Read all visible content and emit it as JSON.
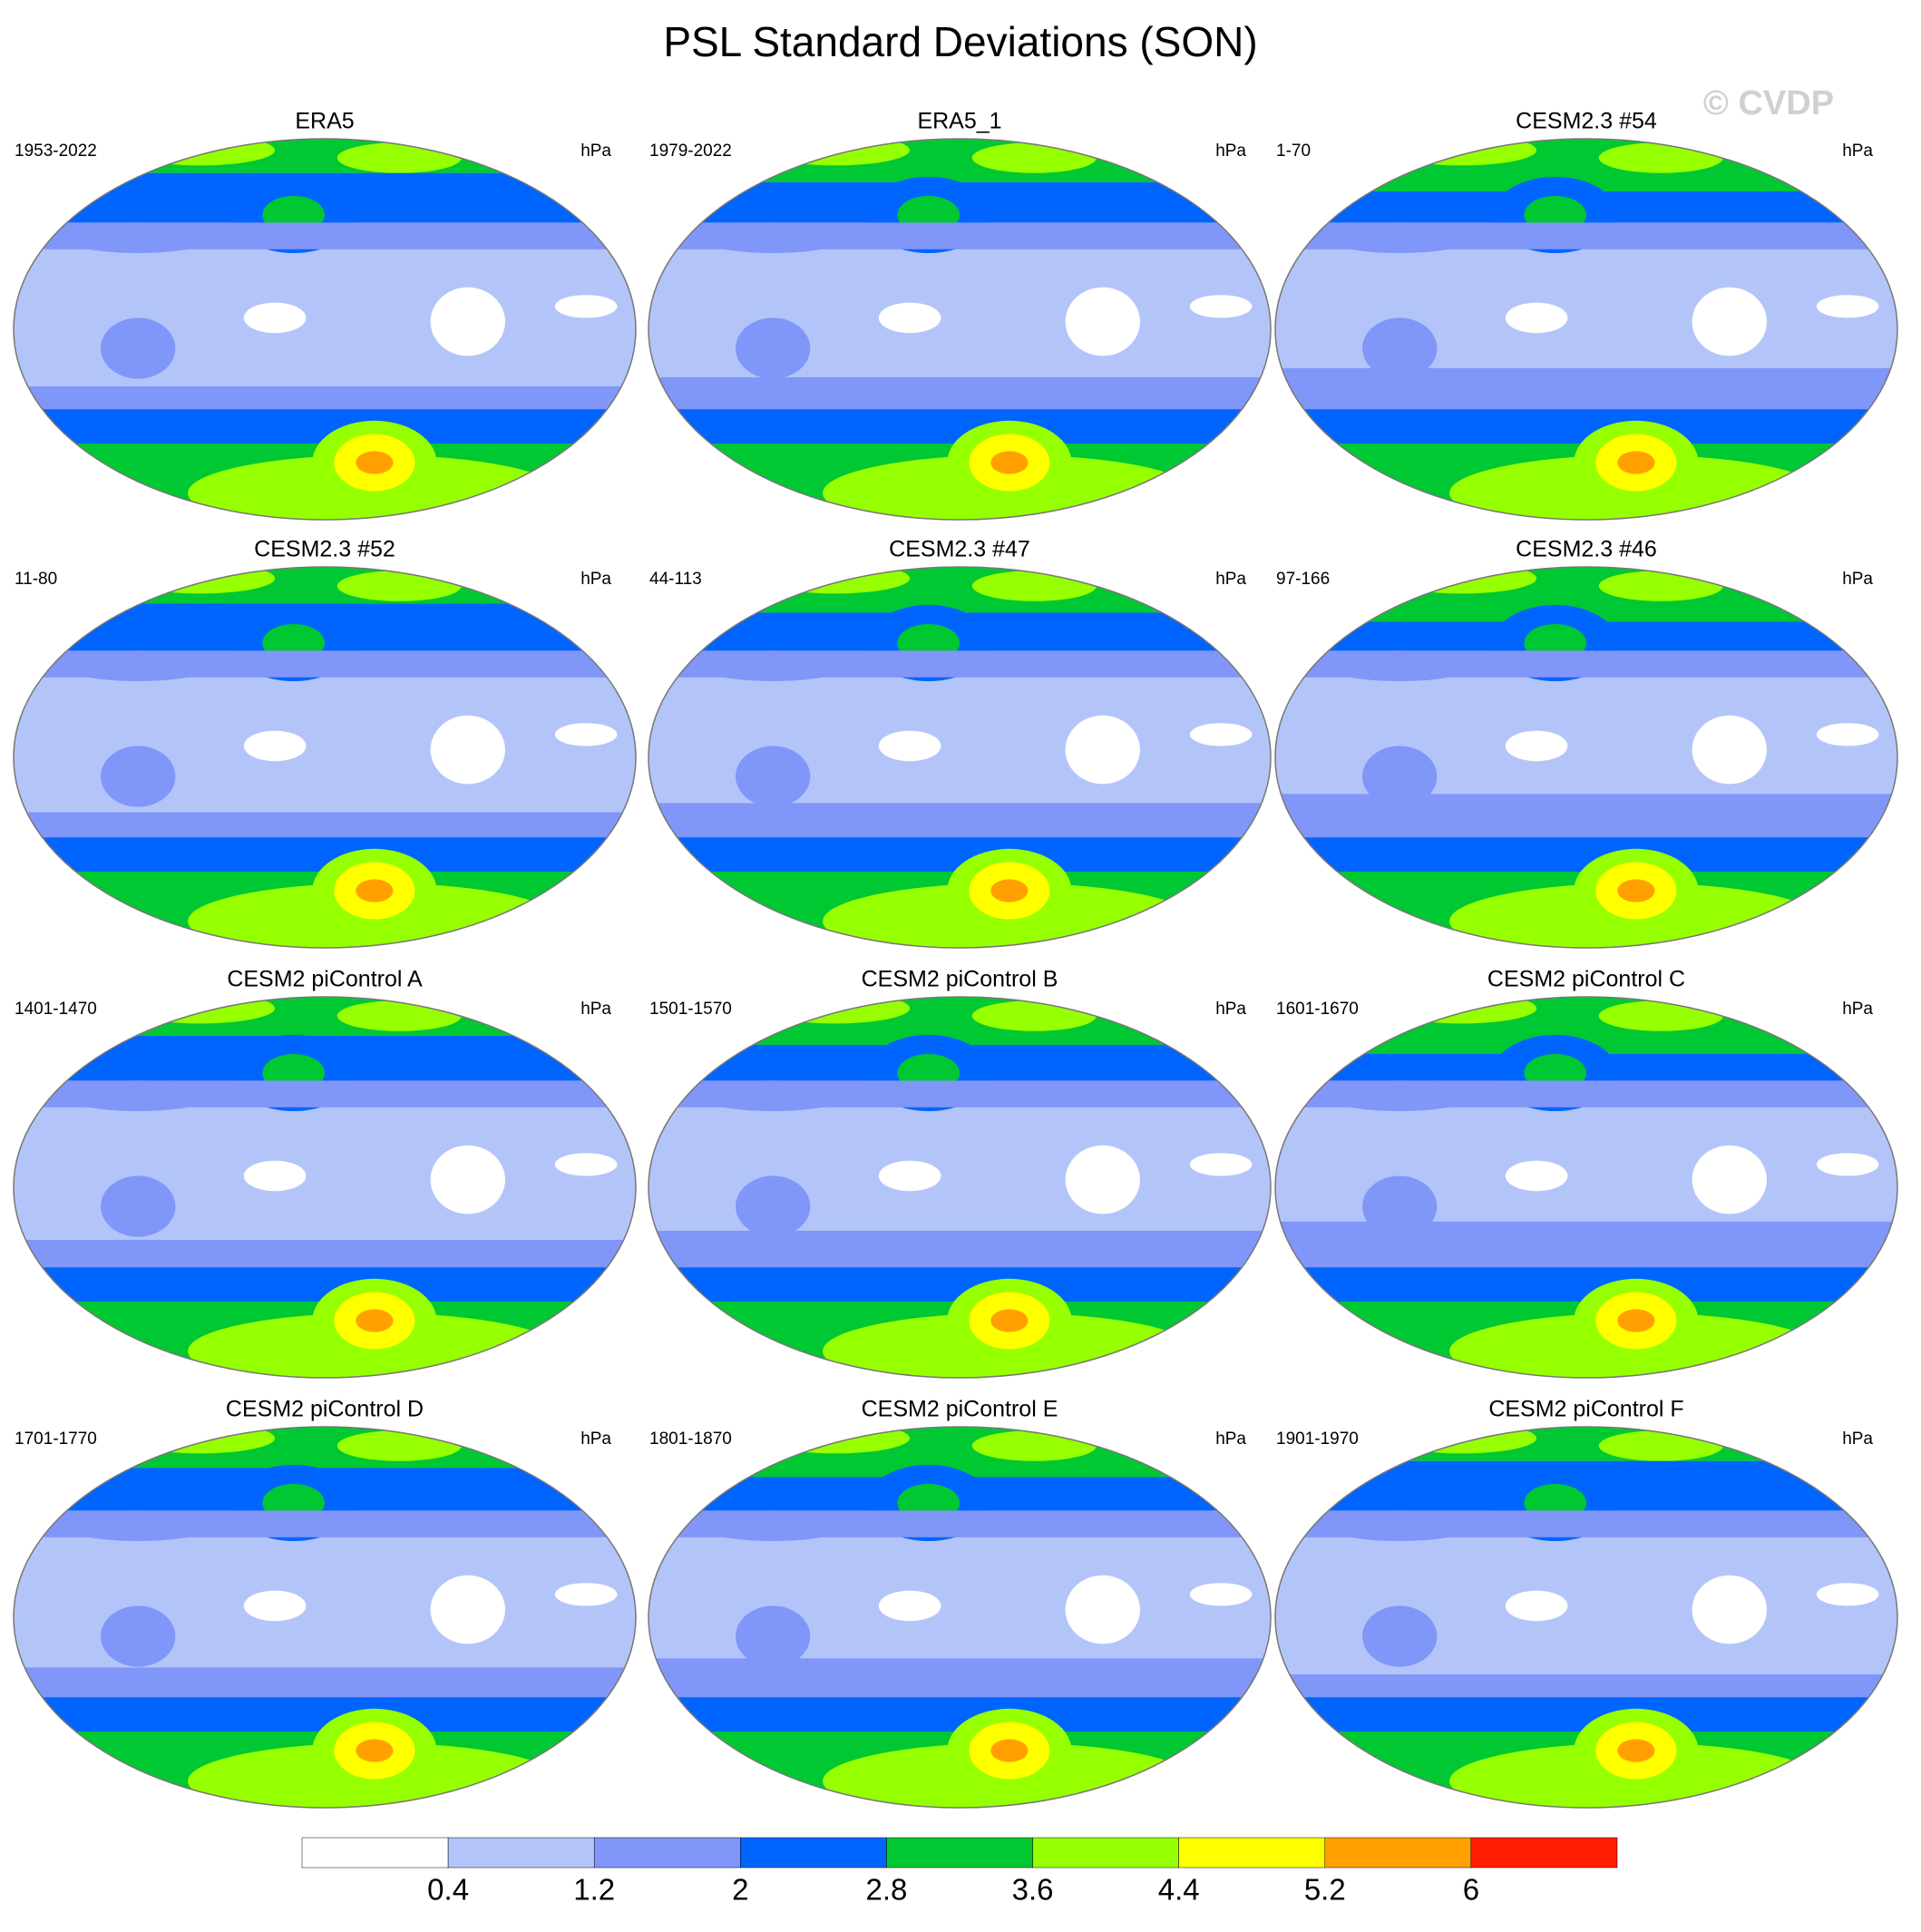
{
  "title": "PSL Standard Deviations (SON)",
  "watermark": "© CVDP",
  "units": "hPa",
  "panels": [
    {
      "title": "ERA5",
      "period": "1953-2022"
    },
    {
      "title": "ERA5_1",
      "period": "1979-2022"
    },
    {
      "title": "CESM2.3 #54",
      "period": "1-70"
    },
    {
      "title": "CESM2.3 #52",
      "period": "11-80"
    },
    {
      "title": "CESM2.3 #47",
      "period": "44-113"
    },
    {
      "title": "CESM2.3 #46",
      "period": "97-166"
    },
    {
      "title": "CESM2 piControl A",
      "period": "1401-1470"
    },
    {
      "title": "CESM2 piControl B",
      "period": "1501-1570"
    },
    {
      "title": "CESM2 piControl C",
      "period": "1601-1670"
    },
    {
      "title": "CESM2 piControl D",
      "period": "1701-1770"
    },
    {
      "title": "CESM2 piControl E",
      "period": "1801-1870"
    },
    {
      "title": "CESM2 piControl F",
      "period": "1901-1970"
    }
  ],
  "colorbar": {
    "colors": [
      "#ffffff",
      "#b3c5f8",
      "#8096f8",
      "#0064ff",
      "#00c832",
      "#96ff00",
      "#ffff00",
      "#ffa000",
      "#ff1e00"
    ],
    "labels": [
      0.4,
      1.2,
      2,
      2.8,
      3.6,
      4.4,
      5.2,
      6
    ]
  }
}
